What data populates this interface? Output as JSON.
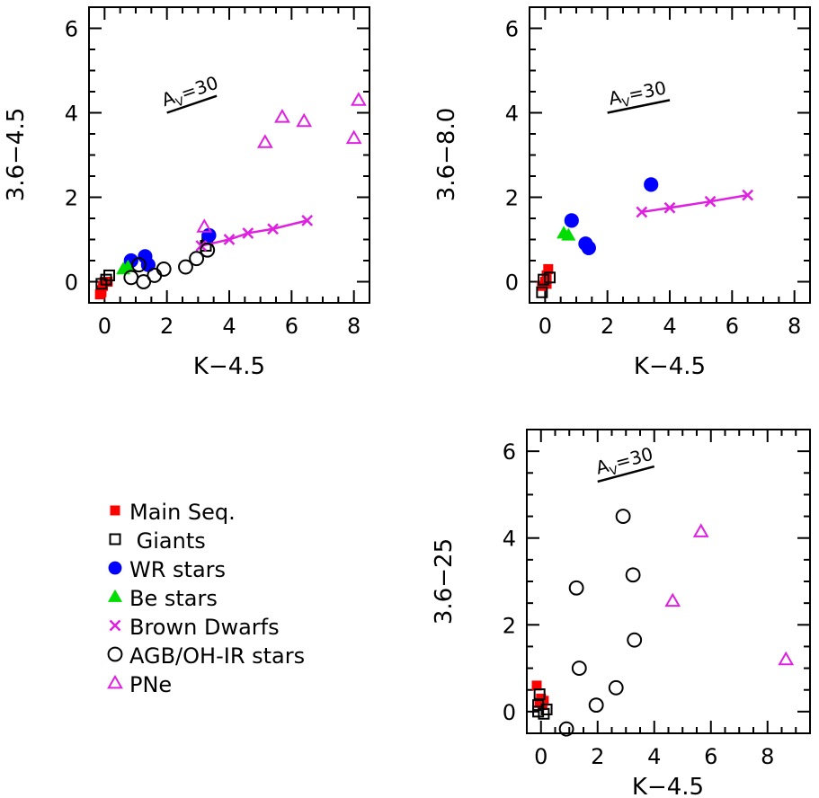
{
  "colors": {
    "main_seq": "#ff0000",
    "giants": "#000000",
    "wr": "#0000ff",
    "be": "#00dd00",
    "brown_dwarfs": "#e020e0",
    "agb": "#000000",
    "pne": "#e020e0"
  },
  "legend": {
    "placement": "lower-left",
    "items": [
      {
        "label": "Main Seq.",
        "marker": "filled-square",
        "color": "#ff0000"
      },
      {
        "label": " Giants",
        "marker": "open-square",
        "color": "#000000"
      },
      {
        "label": "WR stars",
        "marker": "filled-circle",
        "color": "#0000ff"
      },
      {
        "label": "Be stars",
        "marker": "filled-triangle",
        "color": "#00dd00"
      },
      {
        "label": "Brown Dwarfs",
        "marker": "cross",
        "color": "#e020e0"
      },
      {
        "label": "AGB/OH-IR stars",
        "marker": "open-circle",
        "color": "#000000"
      },
      {
        "label": "PNe",
        "marker": "open-triangle",
        "color": "#e020e0"
      }
    ]
  },
  "chart_data": [
    {
      "type": "scatter",
      "xlabel": "K−4.5",
      "ylabel": "3.6−4.5",
      "xlim": [
        -0.5,
        8.5
      ],
      "ylim": [
        -0.5,
        6.5
      ],
      "xticks": [
        "0",
        "2",
        "4",
        "6",
        "8"
      ],
      "yticks": [
        "0",
        "2",
        "4",
        "6"
      ],
      "reddening_vector": {
        "label": "A",
        "sub": "V",
        "tail": "=30",
        "from": [
          2.0,
          4.0
        ],
        "to": [
          3.6,
          4.4
        ]
      },
      "series": [
        {
          "name": "Main Seq.",
          "marker": "filled-square",
          "color": "#ff0000",
          "x": [
            -0.15,
            -0.1,
            -0.05,
            0.0,
            0.05,
            0.1,
            -0.1
          ],
          "y": [
            -0.3,
            -0.2,
            -0.1,
            0.0,
            0.0,
            0.0,
            -0.25
          ]
        },
        {
          "name": "Giants",
          "marker": "open-square",
          "color": "#000000",
          "x": [
            -0.1,
            0.05,
            0.15,
            3.25,
            3.3
          ],
          "y": [
            -0.05,
            0.05,
            0.15,
            0.85,
            1.0
          ]
        },
        {
          "name": "WR stars",
          "marker": "filled-circle",
          "color": "#0000ff",
          "x": [
            0.85,
            1.3,
            1.4,
            3.35
          ],
          "y": [
            0.5,
            0.6,
            0.4,
            1.1
          ]
        },
        {
          "name": "Be stars",
          "marker": "filled-triangle",
          "color": "#00dd00",
          "x": [
            0.6,
            0.75
          ],
          "y": [
            0.3,
            0.35
          ]
        },
        {
          "name": "Brown Dwarfs",
          "marker": "cross",
          "color": "#e020e0",
          "connected": true,
          "x": [
            3.1,
            4.0,
            4.6,
            5.4,
            6.5
          ],
          "y": [
            0.85,
            1.0,
            1.15,
            1.25,
            1.45
          ]
        },
        {
          "name": "AGB/OH-IR stars",
          "marker": "open-circle",
          "color": "#000000",
          "x": [
            0.85,
            1.1,
            1.25,
            1.6,
            1.9,
            2.6,
            2.95,
            3.3
          ],
          "y": [
            0.1,
            0.4,
            0.0,
            0.15,
            0.3,
            0.35,
            0.55,
            0.75
          ]
        },
        {
          "name": "PNe",
          "marker": "open-triangle",
          "color": "#e020e0",
          "x": [
            3.2,
            5.15,
            5.7,
            6.4,
            8.0,
            8.15
          ],
          "y": [
            1.3,
            3.3,
            3.9,
            3.8,
            3.4,
            4.3
          ]
        }
      ]
    },
    {
      "type": "scatter",
      "xlabel": "K−4.5",
      "ylabel": "3.6−8.0",
      "xlim": [
        -0.5,
        8.5
      ],
      "ylim": [
        -0.5,
        6.5
      ],
      "xticks": [
        "0",
        "2",
        "4",
        "6",
        "8"
      ],
      "yticks": [
        "0",
        "2",
        "4",
        "6"
      ],
      "reddening_vector": {
        "label": "A",
        "sub": "V",
        "tail": "=30",
        "from": [
          2.0,
          4.0
        ],
        "to": [
          4.0,
          4.3
        ]
      },
      "series": [
        {
          "name": "Main Seq.",
          "marker": "filled-square",
          "color": "#ff0000",
          "x": [
            -0.1,
            0.0,
            0.05,
            0.1,
            0.05
          ],
          "y": [
            -0.1,
            0.0,
            0.15,
            0.3,
            -0.05
          ]
        },
        {
          "name": "Giants",
          "marker": "open-square",
          "color": "#000000",
          "x": [
            -0.1,
            -0.05,
            0.15
          ],
          "y": [
            -0.25,
            0.05,
            0.1
          ]
        },
        {
          "name": "WR stars",
          "marker": "filled-circle",
          "color": "#0000ff",
          "x": [
            0.85,
            1.3,
            1.4,
            3.4
          ],
          "y": [
            1.45,
            0.9,
            0.8,
            2.3
          ]
        },
        {
          "name": "Be stars",
          "marker": "filled-triangle",
          "color": "#00dd00",
          "x": [
            0.6,
            0.75
          ],
          "y": [
            1.15,
            1.1
          ]
        },
        {
          "name": "Brown Dwarfs",
          "marker": "cross",
          "color": "#e020e0",
          "connected": true,
          "x": [
            3.1,
            4.0,
            5.3,
            6.5
          ],
          "y": [
            1.65,
            1.75,
            1.9,
            2.05
          ]
        }
      ]
    },
    {
      "type": "scatter",
      "xlabel": "K−4.5",
      "ylabel": "3.6−25",
      "xlim": [
        -0.5,
        9.5
      ],
      "ylim": [
        -0.5,
        6.5
      ],
      "xticks": [
        "0",
        "2",
        "4",
        "6",
        "8"
      ],
      "yticks": [
        "0",
        "2",
        "4",
        "6"
      ],
      "reddening_vector": {
        "label": "A",
        "sub": "V",
        "tail": "=30",
        "from": [
          2.0,
          5.3
        ],
        "to": [
          4.0,
          5.65
        ]
      },
      "series": [
        {
          "name": "Main Seq.",
          "marker": "filled-square",
          "color": "#ff0000",
          "x": [
            -0.15,
            -0.05,
            0.0,
            0.05,
            0.1
          ],
          "y": [
            0.6,
            0.2,
            0.3,
            0.15,
            0.25
          ]
        },
        {
          "name": "Giants",
          "marker": "open-square",
          "color": "#000000",
          "x": [
            -0.1,
            -0.05,
            0.1,
            0.2,
            -0.1
          ],
          "y": [
            0.0,
            0.4,
            -0.05,
            0.05,
            0.15
          ]
        },
        {
          "name": "AGB/OH-IR stars",
          "marker": "open-circle",
          "color": "#000000",
          "x": [
            0.9,
            1.25,
            1.35,
            1.95,
            2.65,
            2.9,
            3.25,
            3.3
          ],
          "y": [
            -0.4,
            2.85,
            1.0,
            0.15,
            0.55,
            4.5,
            3.15,
            1.65
          ]
        },
        {
          "name": "PNe",
          "marker": "open-triangle",
          "color": "#e020e0",
          "x": [
            4.65,
            5.65,
            8.65
          ],
          "y": [
            2.55,
            4.15,
            1.2
          ]
        }
      ]
    }
  ]
}
